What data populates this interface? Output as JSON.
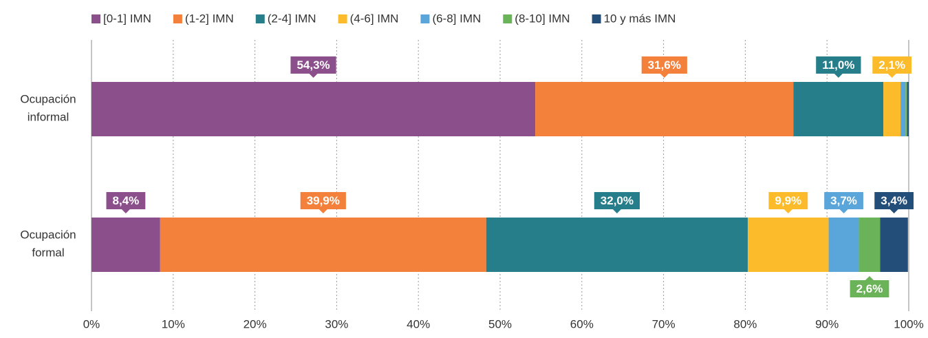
{
  "chart_data": {
    "type": "stacked-bar-horizontal",
    "categories": [
      "Ocupación informal",
      "Ocupación formal"
    ],
    "series": [
      {
        "name": "[0-1] IMN",
        "color": "#8b4f8c",
        "values": [
          54.3,
          8.4
        ],
        "value_labels": [
          "54,3%",
          "8,4%"
        ]
      },
      {
        "name": "(1-2] IMN",
        "color": "#f3813b",
        "values": [
          31.6,
          39.9
        ],
        "value_labels": [
          "31,6%",
          "39,9%"
        ]
      },
      {
        "name": "(2-4] IMN",
        "color": "#267e8a",
        "values": [
          11.0,
          32.0
        ],
        "value_labels": [
          "11,0%",
          "32,0%"
        ]
      },
      {
        "name": "(4-6] IMN",
        "color": "#fbbb2a",
        "values": [
          2.1,
          9.9
        ],
        "value_labels": [
          "2,1%",
          "9,9%"
        ]
      },
      {
        "name": "(6-8] IMN",
        "color": "#5aa5d9",
        "values": [
          0.6,
          3.7
        ],
        "value_labels": [
          null,
          "3,7%"
        ]
      },
      {
        "name": "(8-10] IMN",
        "color": "#6ab358",
        "values": [
          0.2,
          2.6
        ],
        "value_labels": [
          null,
          "2,6%"
        ]
      },
      {
        "name": "10 y más IMN",
        "color": "#234e7a",
        "values": [
          0.2,
          3.4
        ],
        "value_labels": [
          null,
          "3,4%"
        ]
      }
    ],
    "xlim": [
      0,
      100
    ],
    "xticks": [
      {
        "value": 0,
        "label": "0%"
      },
      {
        "value": 10,
        "label": "10%"
      },
      {
        "value": 20,
        "label": "20%"
      },
      {
        "value": 30,
        "label": "30%"
      },
      {
        "value": 40,
        "label": "40%"
      },
      {
        "value": 50,
        "label": "50%"
      },
      {
        "value": 60,
        "label": "60%"
      },
      {
        "value": 70,
        "label": "70%"
      },
      {
        "value": 80,
        "label": "80%"
      },
      {
        "value": 90,
        "label": "90%"
      },
      {
        "value": 100,
        "label": "100%"
      }
    ],
    "grid": true,
    "legend": "top"
  }
}
